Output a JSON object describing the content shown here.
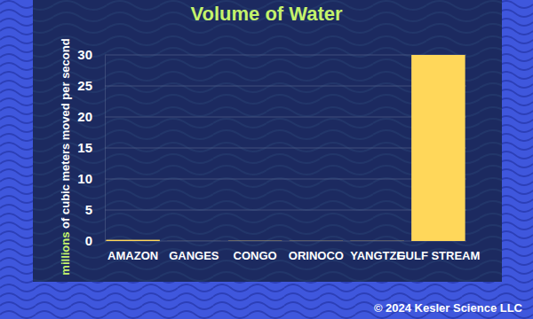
{
  "chart_data": {
    "type": "bar",
    "title": "Volume of Water",
    "y_label": "millions of cubic meters moved per second",
    "categories": [
      "AMAZON",
      "GANGES",
      "CONGO",
      "ORINOCO",
      "YANGTZE",
      "GULF STREAM"
    ],
    "values": [
      0.2,
      0.01,
      0.04,
      0.03,
      0.03,
      30
    ],
    "color": "#ffd75a",
    "ylim": [
      0,
      30
    ],
    "yticks": [
      0,
      5,
      10,
      15,
      20,
      25,
      30
    ],
    "grid": true,
    "footer": "© 2024 Kesler Science LLC"
  }
}
